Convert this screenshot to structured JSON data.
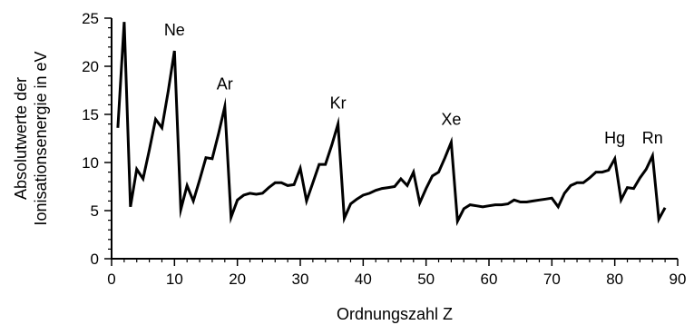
{
  "chart_data": {
    "type": "line",
    "title": "",
    "xlabel": "Ordnungszahl Z",
    "ylabel_lines": [
      "Absolutwerte der",
      "Ionisationsenergie in eV"
    ],
    "xlim": [
      0,
      90
    ],
    "ylim": [
      0,
      25
    ],
    "x_ticks": [
      0,
      10,
      20,
      30,
      40,
      50,
      60,
      70,
      80,
      90
    ],
    "x_minor_step": 2,
    "y_ticks": [
      0,
      5,
      10,
      15,
      20,
      25
    ],
    "y_minor_step": 1,
    "grid": false,
    "line_color": "#000000",
    "series": [
      {
        "x": [
          1,
          2,
          3,
          4,
          5,
          6,
          7,
          8,
          9,
          10,
          11,
          12,
          13,
          14,
          15,
          16,
          17,
          18,
          19,
          20,
          21,
          22,
          23,
          24,
          25,
          26,
          27,
          28,
          29,
          30,
          31,
          32,
          33,
          34,
          35,
          36,
          37,
          38,
          39,
          40,
          41,
          42,
          43,
          44,
          45,
          46,
          47,
          48,
          49,
          50,
          51,
          52,
          53,
          54,
          55,
          56,
          57,
          58,
          59,
          60,
          61,
          62,
          63,
          64,
          65,
          66,
          67,
          68,
          69,
          70,
          71,
          72,
          73,
          74,
          75,
          76,
          77,
          78,
          79,
          80,
          81,
          82,
          83,
          84,
          85,
          86,
          87,
          88
        ],
        "y": [
          13.6,
          24.6,
          5.4,
          9.3,
          8.3,
          11.3,
          14.5,
          13.6,
          17.4,
          21.6,
          5.1,
          7.6,
          6.0,
          8.2,
          10.5,
          10.4,
          13.0,
          15.8,
          4.3,
          6.1,
          6.6,
          6.8,
          6.7,
          6.8,
          7.4,
          7.9,
          7.9,
          7.6,
          7.7,
          9.4,
          6.0,
          7.9,
          9.8,
          9.8,
          11.8,
          14.0,
          4.2,
          5.7,
          6.2,
          6.6,
          6.8,
          7.1,
          7.3,
          7.4,
          7.5,
          8.3,
          7.6,
          9.0,
          5.8,
          7.3,
          8.6,
          9.0,
          10.5,
          12.1,
          3.9,
          5.2,
          5.6,
          5.5,
          5.4,
          5.5,
          5.6,
          5.6,
          5.7,
          6.1,
          5.9,
          5.9,
          6.0,
          6.1,
          6.2,
          6.3,
          5.4,
          6.8,
          7.6,
          7.9,
          7.9,
          8.4,
          9.0,
          9.0,
          9.2,
          10.4,
          6.1,
          7.4,
          7.3,
          8.4,
          9.3,
          10.7,
          4.1,
          5.3
        ]
      }
    ],
    "annotations": [
      {
        "text": "Ne",
        "x": 10,
        "y": 23.2
      },
      {
        "text": "Ar",
        "x": 18,
        "y": 17.6
      },
      {
        "text": "Kr",
        "x": 36,
        "y": 15.6
      },
      {
        "text": "Xe",
        "x": 54,
        "y": 13.9
      },
      {
        "text": "Hg",
        "x": 80,
        "y": 12.0
      },
      {
        "text": "Rn",
        "x": 86,
        "y": 12.0
      }
    ]
  }
}
